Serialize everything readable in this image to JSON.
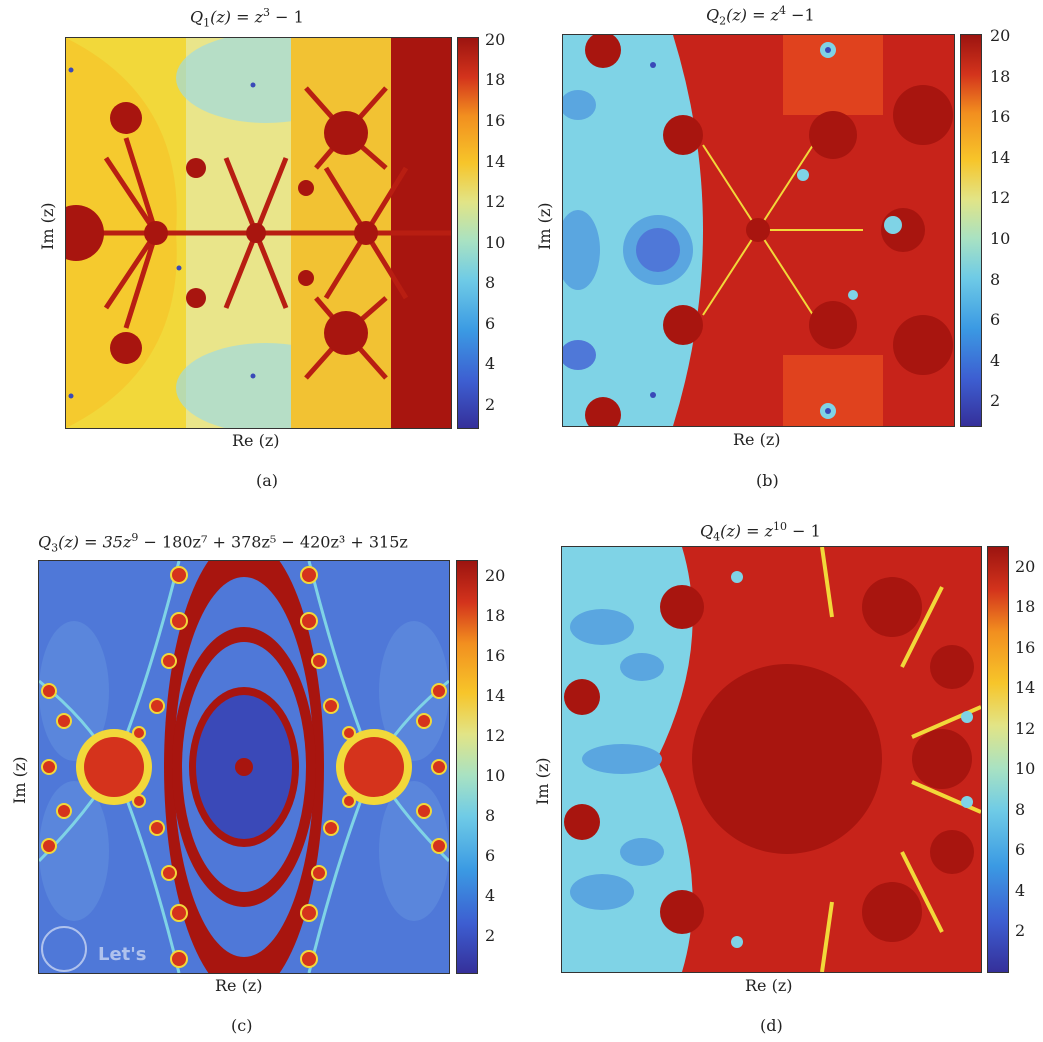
{
  "colors": {
    "dark_red": "#a8150f",
    "red": "#d5331c",
    "orange": "#f39220",
    "yellow": "#f2d83a",
    "cyan": "#7fd3e6",
    "light_blue": "#5aa6e0",
    "blue": "#4f78d8",
    "deep_blue": "#3a49b8",
    "light_yellow": "#e9e58a"
  },
  "chart_data": [
    {
      "type": "heatmap",
      "panel_letter": "(a)",
      "title": {
        "func": "Q",
        "sub": "1",
        "eq": "(z) = z",
        "sup": "3",
        "rest": " − 1"
      },
      "xlabel": "Re (z)",
      "ylabel": "Im (z)",
      "colorbar_ticks": [
        "20",
        "18",
        "16",
        "14",
        "12",
        "10",
        "8",
        "6",
        "4",
        "2"
      ],
      "colorbar_range": [
        1,
        20
      ]
    },
    {
      "type": "heatmap",
      "panel_letter": "(b)",
      "title": {
        "func": "Q",
        "sub": "2",
        "eq": "(z) = z",
        "sup": "4",
        "rest": " −1"
      },
      "xlabel": "Re (z)",
      "ylabel": "Im (z)",
      "colorbar_ticks": [
        "20",
        "18",
        "16",
        "14",
        "12",
        "10",
        "8",
        "6",
        "4",
        "2"
      ],
      "colorbar_range": [
        1,
        20
      ]
    },
    {
      "type": "heatmap",
      "panel_letter": "(c)",
      "title": {
        "func": "Q",
        "sub": "3",
        "eq": "(z) = 35z",
        "sup": "9",
        "rest": " − 180z⁷ + 378z⁵ − 420z³ + 315z"
      },
      "xlabel": "Re (z)",
      "ylabel": "Im (z)",
      "colorbar_ticks": [
        "20",
        "18",
        "16",
        "14",
        "12",
        "10",
        "8",
        "6",
        "4",
        "2"
      ],
      "colorbar_range": [
        1,
        21
      ],
      "watermark": "Let's"
    },
    {
      "type": "heatmap",
      "panel_letter": "(d)",
      "title": {
        "func": "Q",
        "sub": "4",
        "eq": "(z) = z",
        "sup": "10",
        "rest": " − 1"
      },
      "xlabel": "Re (z)",
      "ylabel": "Im (z)",
      "colorbar_ticks": [
        "20",
        "18",
        "16",
        "14",
        "12",
        "10",
        "8",
        "6",
        "4",
        "2"
      ],
      "colorbar_range": [
        1,
        21
      ]
    }
  ]
}
